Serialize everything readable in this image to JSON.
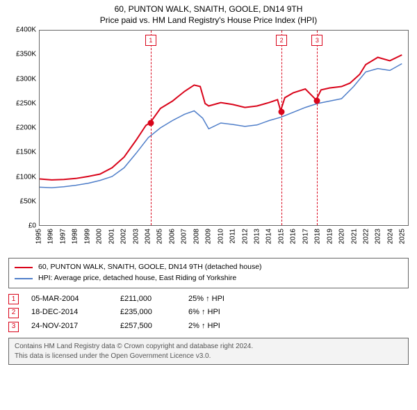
{
  "title": {
    "line1": "60, PUNTON WALK, SNAITH, GOOLE, DN14 9TH",
    "line2": "Price paid vs. HM Land Registry's House Price Index (HPI)",
    "fontsize": 12,
    "color": "#000000"
  },
  "chart": {
    "type": "line",
    "background_color": "#ffffff",
    "plot_border_color": "#666666",
    "grid_color": "transparent",
    "x": {
      "min": 1995,
      "max": 2025.5,
      "ticks": [
        1995,
        1996,
        1997,
        1998,
        1999,
        2000,
        2001,
        2002,
        2003,
        2004,
        2005,
        2006,
        2007,
        2008,
        2009,
        2010,
        2011,
        2012,
        2013,
        2014,
        2015,
        2016,
        2017,
        2018,
        2019,
        2020,
        2021,
        2022,
        2023,
        2024,
        2025
      ],
      "tick_fontsize": 10,
      "tick_rotation_deg": -90
    },
    "y": {
      "min": 0,
      "max": 400000,
      "ticks": [
        0,
        50000,
        100000,
        150000,
        200000,
        250000,
        300000,
        350000,
        400000
      ],
      "tick_labels": [
        "£0",
        "£50K",
        "£100K",
        "£150K",
        "£200K",
        "£250K",
        "£300K",
        "£350K",
        "£400K"
      ],
      "tick_fontsize": 10
    },
    "series": [
      {
        "id": "property",
        "label": "60, PUNTON WALK, SNAITH, GOOLE, DN14 9TH (detached house)",
        "color": "#d9041a",
        "line_width": 2,
        "points": [
          [
            1995,
            95000
          ],
          [
            1996,
            93000
          ],
          [
            1997,
            94000
          ],
          [
            1998,
            96000
          ],
          [
            1999,
            100000
          ],
          [
            2000,
            105000
          ],
          [
            2001,
            118000
          ],
          [
            2002,
            140000
          ],
          [
            2003,
            175000
          ],
          [
            2003.8,
            205000
          ],
          [
            2004.17,
            211000
          ],
          [
            2005,
            240000
          ],
          [
            2006,
            255000
          ],
          [
            2007,
            275000
          ],
          [
            2007.8,
            288000
          ],
          [
            2008.3,
            285000
          ],
          [
            2008.7,
            250000
          ],
          [
            2009,
            245000
          ],
          [
            2010,
            252000
          ],
          [
            2011,
            248000
          ],
          [
            2012,
            242000
          ],
          [
            2013,
            245000
          ],
          [
            2014,
            252000
          ],
          [
            2014.7,
            258000
          ],
          [
            2014.96,
            235000
          ],
          [
            2015.3,
            262000
          ],
          [
            2016,
            272000
          ],
          [
            2017,
            280000
          ],
          [
            2017.9,
            257500
          ],
          [
            2018.3,
            278000
          ],
          [
            2019,
            282000
          ],
          [
            2020,
            285000
          ],
          [
            2020.7,
            292000
          ],
          [
            2021.5,
            310000
          ],
          [
            2022,
            330000
          ],
          [
            2023,
            345000
          ],
          [
            2024,
            338000
          ],
          [
            2025,
            350000
          ]
        ]
      },
      {
        "id": "hpi",
        "label": "HPI: Average price, detached house, East Riding of Yorkshire",
        "color": "#4f7ec9",
        "line_width": 1.5,
        "points": [
          [
            1995,
            78000
          ],
          [
            1996,
            77000
          ],
          [
            1997,
            79000
          ],
          [
            1998,
            82000
          ],
          [
            1999,
            86000
          ],
          [
            2000,
            92000
          ],
          [
            2001,
            100000
          ],
          [
            2002,
            118000
          ],
          [
            2003,
            148000
          ],
          [
            2004,
            180000
          ],
          [
            2005,
            200000
          ],
          [
            2006,
            215000
          ],
          [
            2007,
            228000
          ],
          [
            2007.8,
            235000
          ],
          [
            2008.5,
            220000
          ],
          [
            2009,
            198000
          ],
          [
            2010,
            210000
          ],
          [
            2011,
            207000
          ],
          [
            2012,
            203000
          ],
          [
            2013,
            206000
          ],
          [
            2014,
            215000
          ],
          [
            2015,
            222000
          ],
          [
            2016,
            232000
          ],
          [
            2017,
            242000
          ],
          [
            2018,
            250000
          ],
          [
            2019,
            255000
          ],
          [
            2020,
            260000
          ],
          [
            2021,
            285000
          ],
          [
            2022,
            315000
          ],
          [
            2023,
            322000
          ],
          [
            2024,
            318000
          ],
          [
            2025,
            332000
          ]
        ]
      }
    ],
    "sale_markers": [
      {
        "n": "1",
        "year": 2004.17,
        "price": 211000,
        "color": "#d9041a"
      },
      {
        "n": "2",
        "year": 2014.96,
        "price": 235000,
        "color": "#d9041a"
      },
      {
        "n": "3",
        "year": 2017.9,
        "price": 257500,
        "color": "#d9041a"
      }
    ],
    "sale_dot_color": "#d9041a"
  },
  "legend": {
    "border_color": "#666666",
    "fontsize": 10.5,
    "items": [
      {
        "color": "#d9041a",
        "text": "60, PUNTON WALK, SNAITH, GOOLE, DN14 9TH (detached house)"
      },
      {
        "color": "#4f7ec9",
        "text": "HPI: Average price, detached house, East Riding of Yorkshire"
      }
    ]
  },
  "sales": {
    "fontsize": 11,
    "marker_border_color": "#d9041a",
    "marker_text_color": "#d9041a",
    "hpi_suffix": "HPI",
    "rows": [
      {
        "n": "1",
        "date": "05-MAR-2004",
        "price": "£211,000",
        "pct": "25% ↑"
      },
      {
        "n": "2",
        "date": "18-DEC-2014",
        "price": "£235,000",
        "pct": "6% ↑"
      },
      {
        "n": "3",
        "date": "24-NOV-2017",
        "price": "£257,500",
        "pct": "2% ↑"
      }
    ]
  },
  "footer": {
    "background_color": "#f3f3f3",
    "border_color": "#666666",
    "text_color": "#555555",
    "fontsize": 10,
    "line1": "Contains HM Land Registry data © Crown copyright and database right 2024.",
    "line2": "This data is licensed under the Open Government Licence v3.0."
  }
}
